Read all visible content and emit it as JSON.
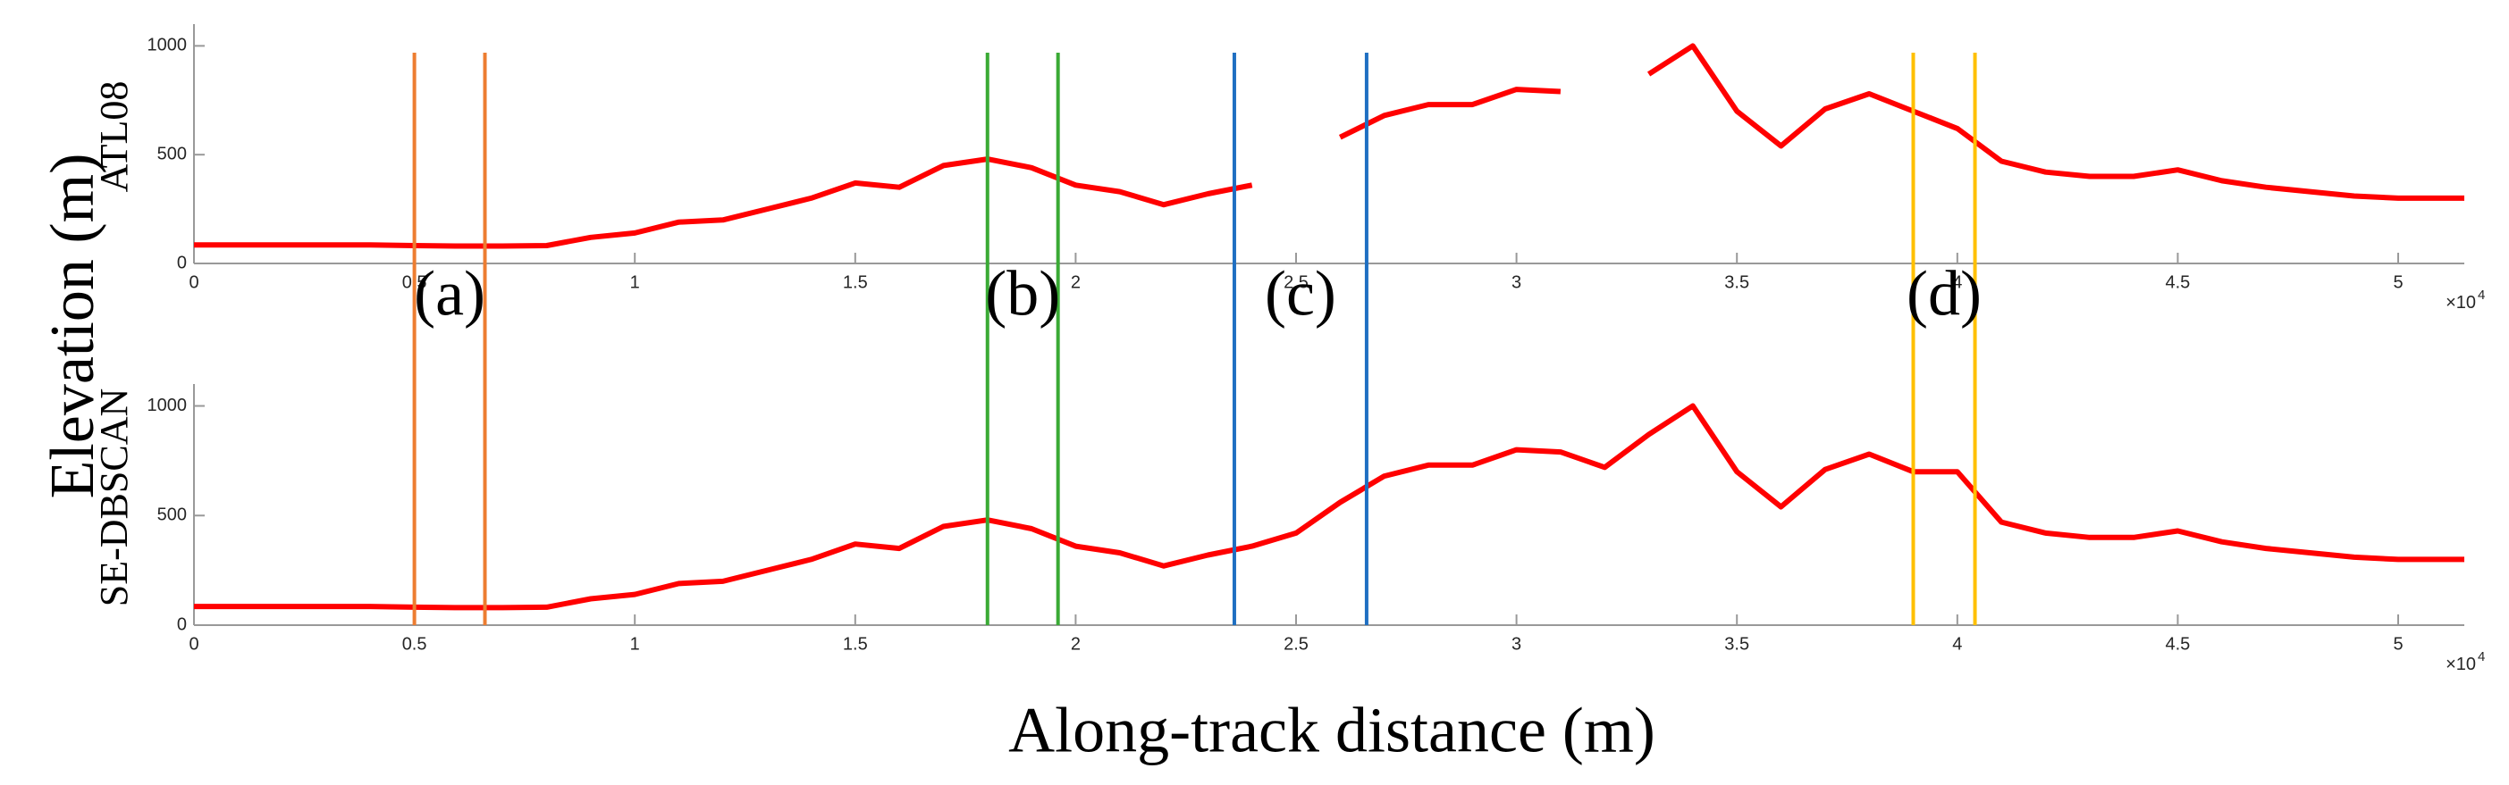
{
  "figure": {
    "ylabel": "Elevation (m)",
    "xlabel": "Along-track distance (m)",
    "markers": [
      {
        "x": 0.5,
        "color": "#ed7d31"
      },
      {
        "x": 0.66,
        "color": "#ed7d31"
      },
      {
        "x": 1.8,
        "color": "#3aaa35"
      },
      {
        "x": 1.96,
        "color": "#3aaa35"
      },
      {
        "x": 2.36,
        "color": "#1f6fc2"
      },
      {
        "x": 2.66,
        "color": "#1f6fc2"
      },
      {
        "x": 3.9,
        "color": "#ffc000"
      },
      {
        "x": 4.04,
        "color": "#ffc000"
      }
    ],
    "annotations": [
      "(a)",
      "(b)",
      "(c)",
      "(d)"
    ]
  },
  "chart_data": [
    {
      "type": "line",
      "ylabel": "ATL08",
      "color": "#ff0000",
      "x": [
        0,
        0.1,
        0.2,
        0.3,
        0.4,
        0.5,
        0.6,
        0.7,
        0.8,
        0.9,
        1,
        1.1,
        1.2,
        1.3,
        1.4,
        1.5,
        1.6,
        1.7,
        1.8,
        1.9,
        2,
        2.1,
        2.2,
        2.3,
        2.4,
        2.5,
        2.6,
        2.7,
        2.8,
        2.9,
        3,
        3.1,
        3.2,
        3.3,
        3.4,
        3.5,
        3.6,
        3.7,
        3.8,
        3.9,
        4,
        4.1,
        4.2,
        4.3,
        4.4,
        4.5,
        4.6,
        4.7,
        4.8,
        4.9,
        5,
        5.1,
        5.15
      ],
      "values": [
        85,
        85,
        85,
        85,
        85,
        82,
        80,
        80,
        82,
        120,
        140,
        190,
        200,
        250,
        300,
        370,
        350,
        450,
        480,
        440,
        360,
        330,
        270,
        320,
        360,
        null,
        580,
        680,
        730,
        730,
        800,
        790,
        null,
        870,
        1000,
        700,
        540,
        710,
        780,
        700,
        620,
        470,
        420,
        400,
        400,
        430,
        380,
        350,
        330,
        310,
        300,
        300,
        300
      ],
      "xlim": [
        0,
        5.15
      ],
      "xticks": [
        0,
        0.5,
        1,
        1.5,
        2,
        2.5,
        3,
        3.5,
        4,
        4.5,
        5
      ],
      "x_exponent": {
        "base": "×10",
        "exponent": "4"
      },
      "ylim": [
        0,
        1100
      ],
      "yticks": [
        0,
        500,
        1000
      ]
    },
    {
      "type": "line",
      "ylabel": "SE-DBSCAN",
      "color": "#ff0000",
      "x": [
        0,
        0.1,
        0.2,
        0.3,
        0.4,
        0.5,
        0.6,
        0.7,
        0.8,
        0.9,
        1,
        1.1,
        1.2,
        1.3,
        1.4,
        1.5,
        1.6,
        1.7,
        1.8,
        1.9,
        2,
        2.1,
        2.2,
        2.3,
        2.4,
        2.5,
        2.6,
        2.7,
        2.8,
        2.9,
        3,
        3.1,
        3.2,
        3.3,
        3.4,
        3.5,
        3.6,
        3.7,
        3.8,
        3.9,
        4,
        4.1,
        4.2,
        4.3,
        4.4,
        4.5,
        4.6,
        4.7,
        4.8,
        4.9,
        5,
        5.1,
        5.15
      ],
      "values": [
        85,
        85,
        85,
        85,
        85,
        82,
        80,
        80,
        82,
        120,
        140,
        190,
        200,
        250,
        300,
        370,
        350,
        450,
        480,
        440,
        360,
        330,
        270,
        320,
        360,
        420,
        560,
        680,
        730,
        730,
        800,
        790,
        720,
        870,
        1000,
        700,
        540,
        710,
        780,
        700,
        700,
        470,
        420,
        400,
        400,
        430,
        380,
        350,
        330,
        310,
        300,
        300,
        300
      ],
      "xlim": [
        0,
        5.15
      ],
      "xticks": [
        0,
        0.5,
        1,
        1.5,
        2,
        2.5,
        3,
        3.5,
        4,
        4.5,
        5
      ],
      "x_exponent": {
        "base": "×10",
        "exponent": "4"
      },
      "ylim": [
        0,
        1100
      ],
      "yticks": [
        0,
        500,
        1000
      ]
    }
  ]
}
